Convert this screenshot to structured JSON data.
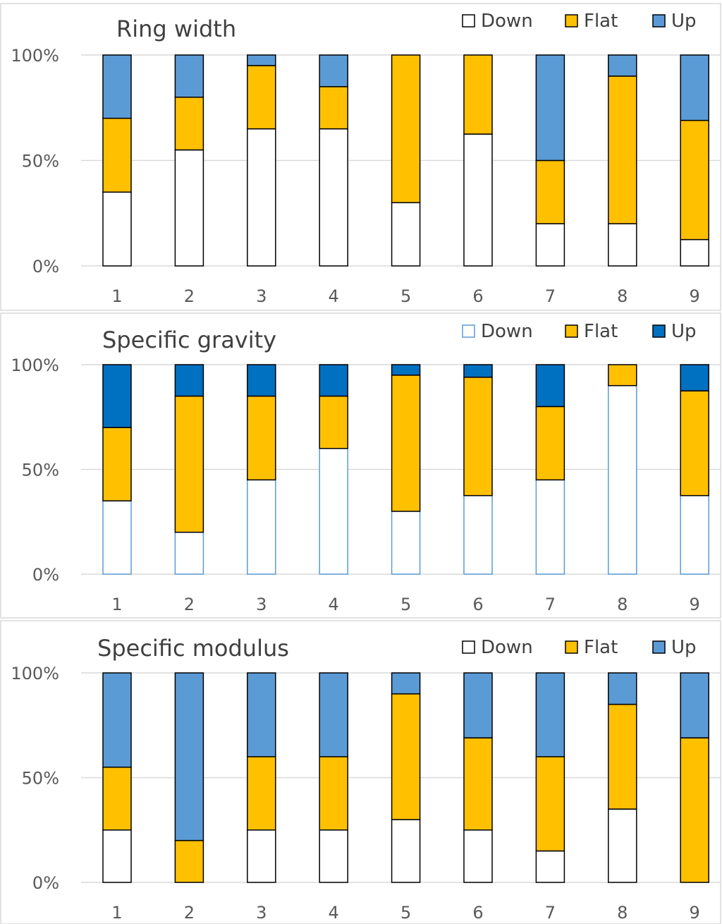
{
  "chart_data": [
    {
      "type": "bar",
      "stacked": true,
      "title": "Ring width",
      "categories": [
        "1",
        "2",
        "3",
        "4",
        "5",
        "6",
        "7",
        "8",
        "9"
      ],
      "y_ticks": [
        "0%",
        "50%",
        "100%"
      ],
      "ylim": [
        0,
        100
      ],
      "grid": true,
      "legend_position": "top-right",
      "series": [
        {
          "name": "Down",
          "values": [
            35,
            55,
            65,
            65,
            30,
            62.5,
            20,
            20,
            12.5
          ],
          "color": "#ffffff",
          "stroke": "#000000"
        },
        {
          "name": "Flat",
          "values": [
            35,
            25,
            30,
            20,
            70,
            37.5,
            30,
            70,
            56.5
          ],
          "color": "#ffc000",
          "stroke": "#000000"
        },
        {
          "name": "Up",
          "values": [
            30,
            20,
            5,
            15,
            0,
            0,
            50,
            10,
            31
          ],
          "color": "#5b9bd5",
          "stroke": "#000000"
        }
      ]
    },
    {
      "type": "bar",
      "stacked": true,
      "title": "Specific gravity",
      "categories": [
        "1",
        "2",
        "3",
        "4",
        "5",
        "6",
        "7",
        "8",
        "9"
      ],
      "y_ticks": [
        "0%",
        "50%",
        "100%"
      ],
      "ylim": [
        0,
        100
      ],
      "grid": true,
      "legend_position": "top-right",
      "series": [
        {
          "name": "Down",
          "values": [
            35,
            20,
            45,
            60,
            30,
            37.5,
            45,
            90,
            37.5
          ],
          "color": "#ffffff",
          "stroke": "#5b9bd5"
        },
        {
          "name": "Flat",
          "values": [
            35,
            65,
            40,
            25,
            65,
            56.5,
            35,
            10,
            50
          ],
          "color": "#ffc000",
          "stroke": "#000000"
        },
        {
          "name": "Up",
          "values": [
            30,
            15,
            15,
            15,
            5,
            6,
            20,
            0,
            12.5
          ],
          "color": "#0070c0",
          "stroke": "#000000"
        }
      ]
    },
    {
      "type": "bar",
      "stacked": true,
      "title": "Specific modulus",
      "categories": [
        "1",
        "2",
        "3",
        "4",
        "5",
        "6",
        "7",
        "8",
        "9"
      ],
      "y_ticks": [
        "0%",
        "50%",
        "100%"
      ],
      "ylim": [
        0,
        100
      ],
      "grid": true,
      "legend_position": "top-right",
      "series": [
        {
          "name": "Down",
          "values": [
            25,
            0,
            25,
            25,
            30,
            25,
            15,
            35,
            0
          ],
          "color": "#ffffff",
          "stroke": "#000000"
        },
        {
          "name": "Flat",
          "values": [
            30,
            20,
            35,
            35,
            60,
            44,
            45,
            50,
            69
          ],
          "color": "#ffc000",
          "stroke": "#000000"
        },
        {
          "name": "Up",
          "values": [
            45,
            80,
            40,
            40,
            10,
            31,
            40,
            15,
            31
          ],
          "color": "#5b9bd5",
          "stroke": "#000000"
        }
      ]
    }
  ]
}
